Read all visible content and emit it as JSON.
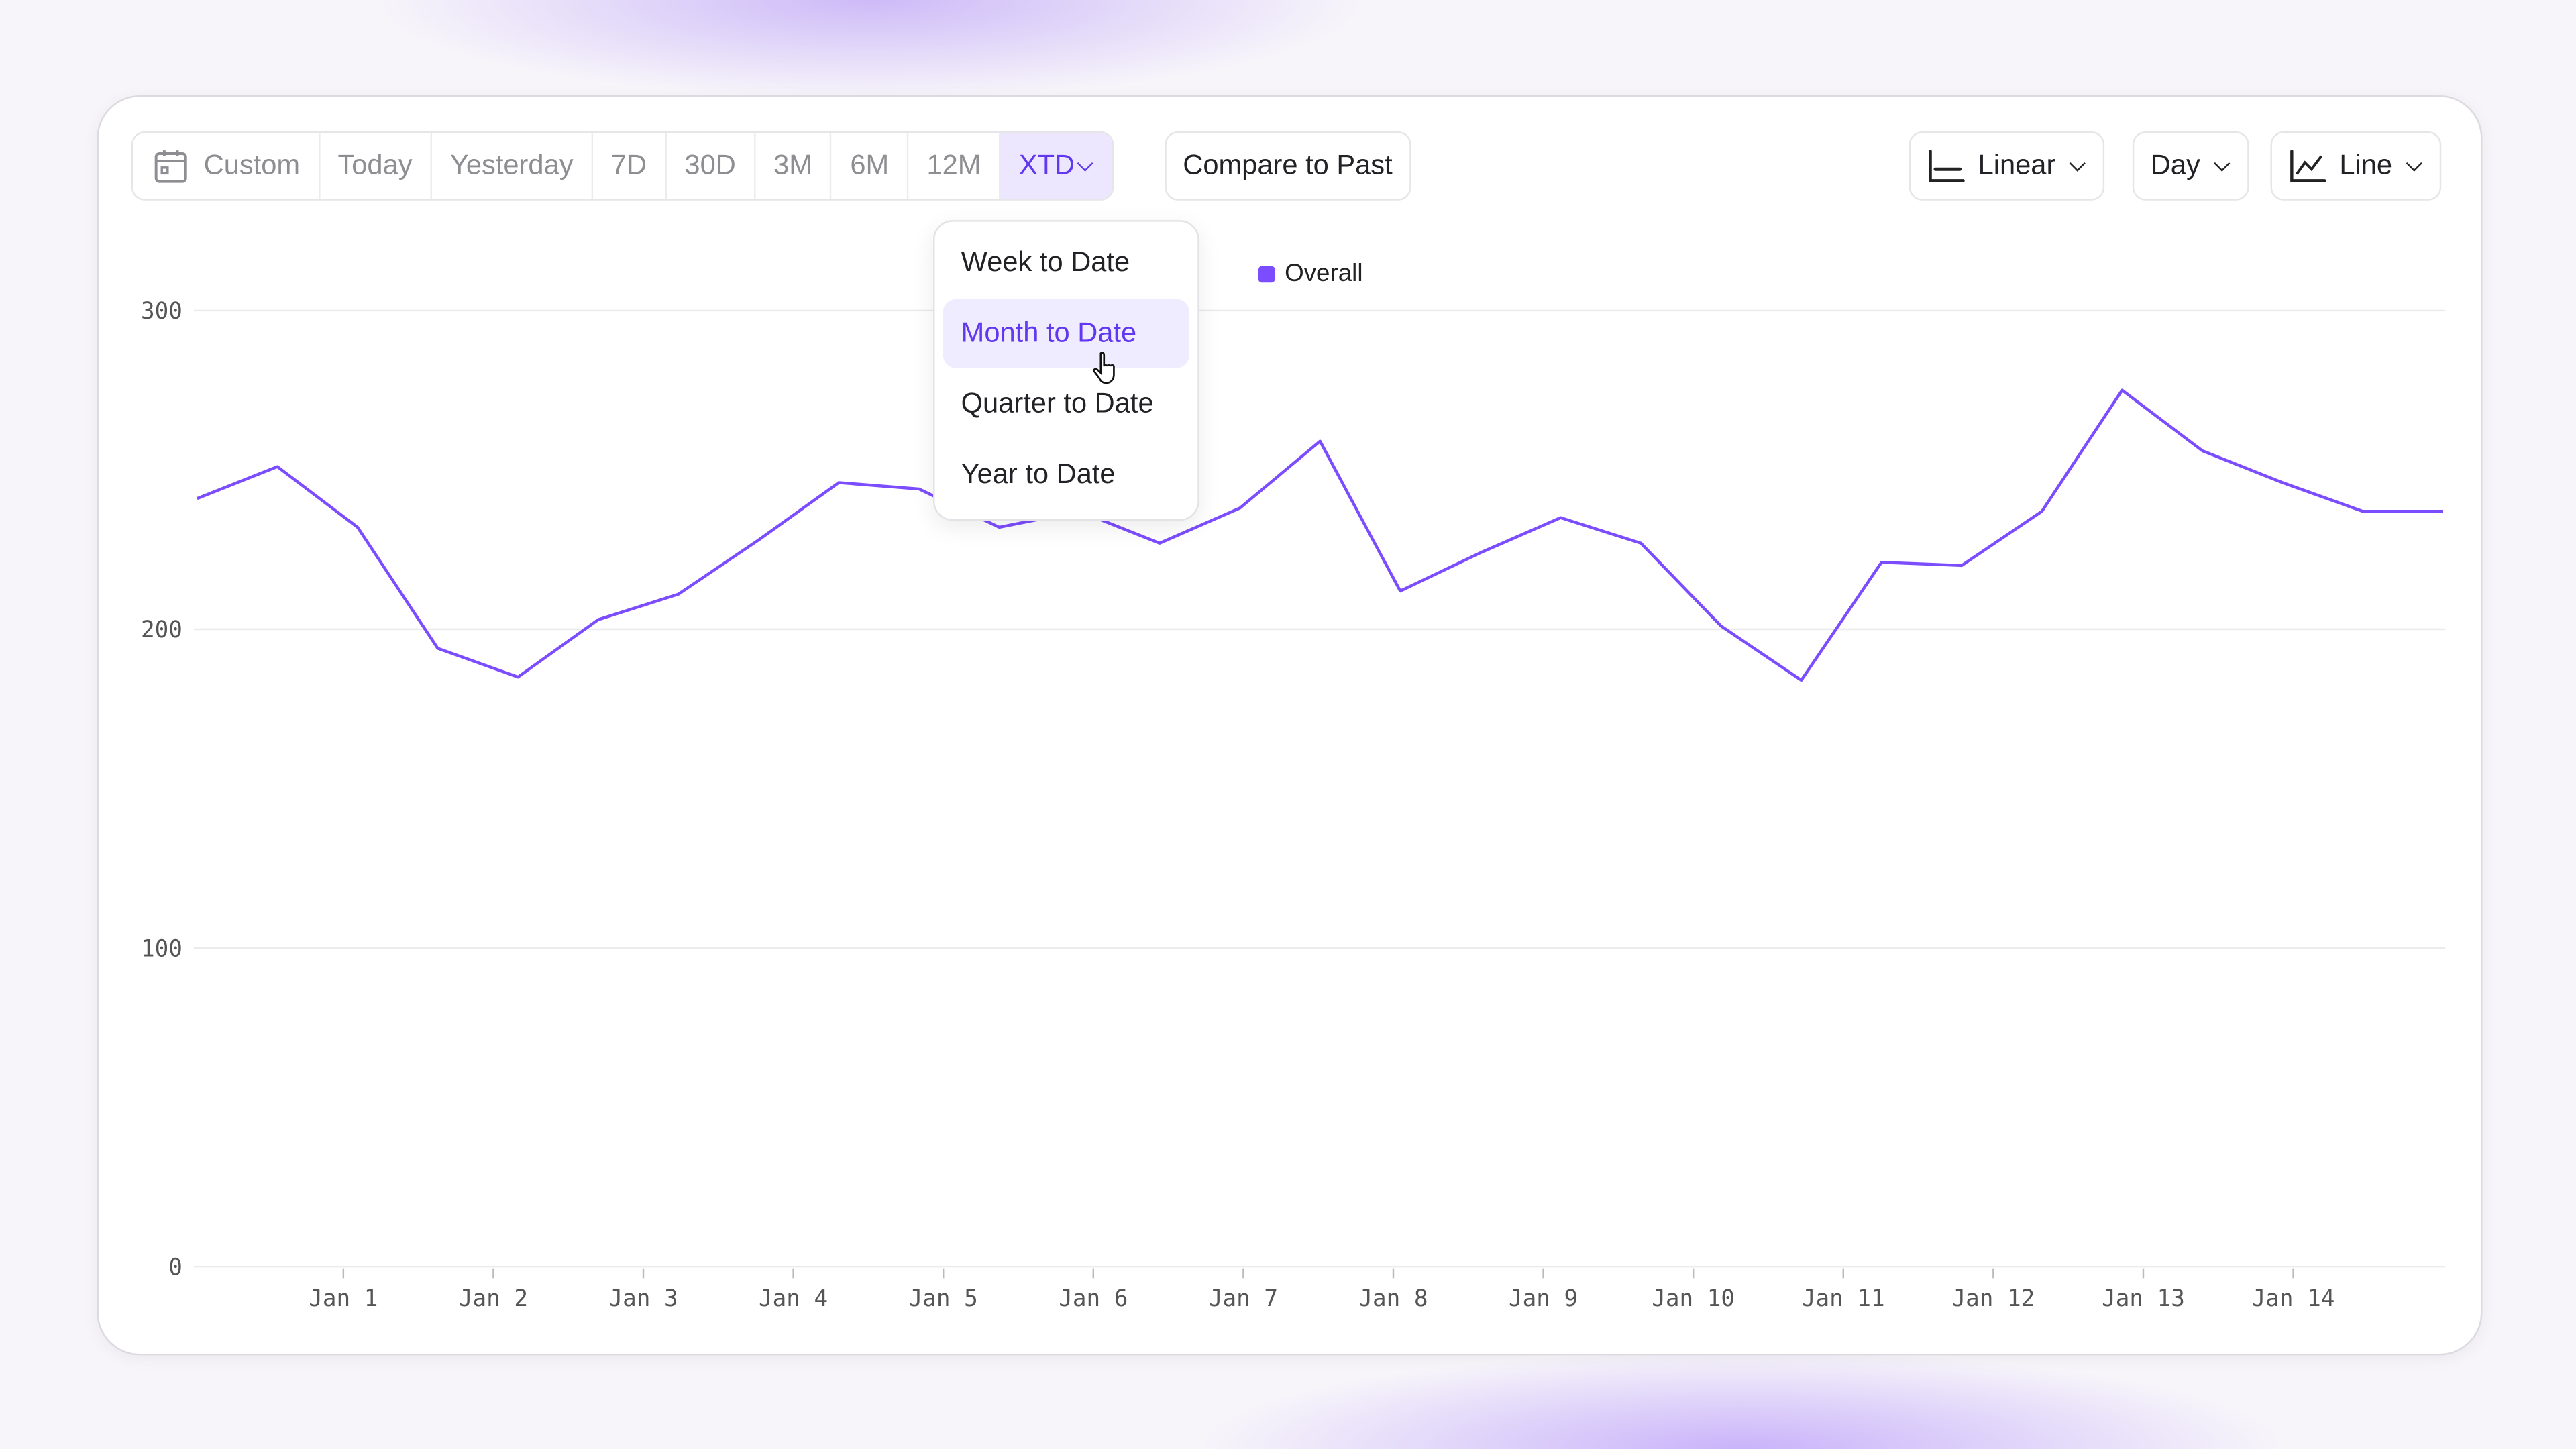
{
  "toolbar": {
    "ranges": [
      "Custom",
      "Today",
      "Yesterday",
      "7D",
      "30D",
      "3M",
      "6M",
      "12M",
      "XTD"
    ],
    "active_range": "XTD",
    "compare": "Compare to Past",
    "scale": "Linear",
    "interval": "Day",
    "chart_type": "Line"
  },
  "xtd_menu": {
    "items": [
      "Week to Date",
      "Month to Date",
      "Quarter to Date",
      "Year to Date"
    ],
    "highlighted": "Month to Date"
  },
  "colors": {
    "accent": "#6138f0",
    "series": "#7c4dff"
  },
  "chart_data": {
    "type": "line",
    "legend": [
      "Overall"
    ],
    "legend_placement": "top-center",
    "ylim": [
      0,
      300
    ],
    "yticks": [
      0,
      100,
      200,
      300
    ],
    "grid": true,
    "xticks": [
      "Jan 1",
      "Jan 2",
      "Jan 3",
      "Jan 4",
      "Jan 5",
      "Jan 6",
      "Jan 7",
      "Jan 8",
      "Jan 9",
      "Jan 10",
      "Jan 11",
      "Jan 12",
      "Jan 13",
      "Jan 14"
    ],
    "series": [
      {
        "name": "Overall",
        "values": [
          241,
          251,
          232,
          194,
          185,
          203,
          211,
          228,
          246,
          244,
          232,
          237,
          227,
          238,
          259,
          212,
          224,
          235,
          227,
          201,
          184,
          221,
          220,
          237,
          275,
          256,
          246,
          237,
          237
        ]
      }
    ]
  }
}
